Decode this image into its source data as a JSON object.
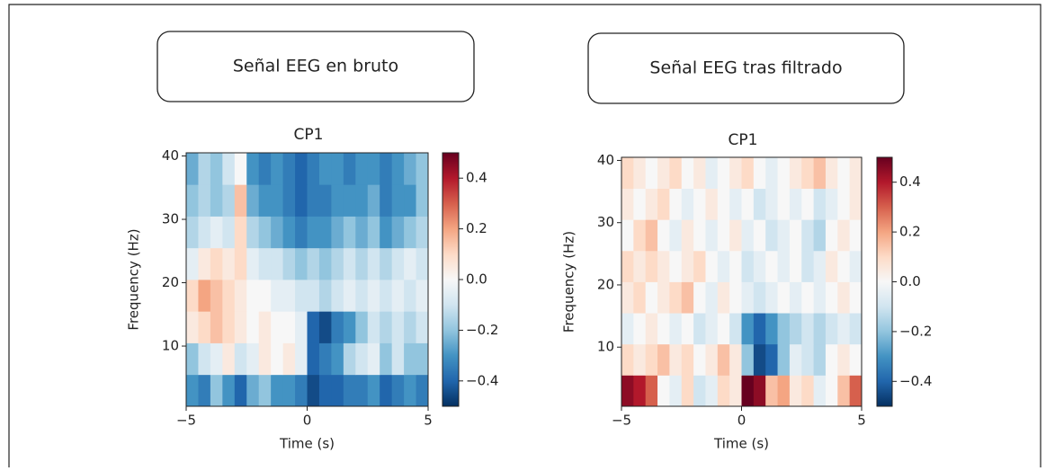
{
  "chart_data": [
    {
      "type": "heatmap",
      "header": "Señal EEG en bruto",
      "title": "CP1",
      "xlabel": "Time (s)",
      "ylabel": "Frequency (Hz)",
      "colormap": "RdBu_r",
      "xlim": [
        -5,
        5
      ],
      "ylim": [
        0.5,
        40.5
      ],
      "xticks": [
        {
          "value": -5,
          "label": "−5"
        },
        0,
        5
      ],
      "yticks": [
        10,
        20,
        30,
        40
      ],
      "clim": [
        -0.5,
        0.5
      ],
      "cticks": [
        0.4,
        0.2,
        {
          "value": 0,
          "label": "0.0"
        },
        {
          "value": -0.2,
          "label": "−0.2"
        },
        {
          "value": -0.4,
          "label": "−0.4"
        }
      ],
      "xbins": [
        -5,
        -4.5,
        -4,
        -3.5,
        -3,
        -2.5,
        -2,
        -1.5,
        -1,
        -0.5,
        0,
        0.5,
        1,
        1.5,
        2,
        2.5,
        3,
        3.5,
        4,
        4.5,
        5
      ],
      "ybins": [
        0.5,
        5.5,
        10.5,
        15.5,
        20.5,
        25.5,
        30.5,
        35.5,
        40.5
      ],
      "values": [
        [
          -0.3,
          -0.35,
          -0.2,
          -0.3,
          -0.4,
          -0.25,
          -0.2,
          -0.3,
          -0.3,
          -0.35,
          -0.45,
          -0.4,
          -0.4,
          -0.35,
          -0.35,
          -0.3,
          -0.4,
          -0.35,
          -0.3,
          -0.35
        ],
        [
          -0.2,
          -0.1,
          -0.05,
          0.05,
          -0.1,
          -0.05,
          0.05,
          0,
          0.05,
          -0.05,
          -0.4,
          -0.35,
          -0.3,
          -0.15,
          -0.1,
          -0.05,
          -0.2,
          -0.1,
          -0.2,
          -0.2
        ],
        [
          0.05,
          0.1,
          0.15,
          0.1,
          0.05,
          0,
          0.05,
          0,
          0,
          -0.05,
          -0.4,
          -0.45,
          -0.35,
          -0.3,
          -0.2,
          -0.1,
          -0.15,
          -0.1,
          -0.15,
          -0.1
        ],
        [
          0.1,
          0.2,
          0.15,
          0.1,
          0.05,
          0,
          0,
          -0.05,
          -0.05,
          -0.1,
          -0.1,
          -0.15,
          -0.1,
          -0.05,
          -0.1,
          -0.05,
          -0.1,
          -0.05,
          -0.1,
          -0.05
        ],
        [
          -0.05,
          0.05,
          0.1,
          0.05,
          0.1,
          -0.05,
          -0.1,
          -0.1,
          -0.15,
          -0.2,
          -0.15,
          -0.2,
          -0.15,
          -0.1,
          -0.15,
          -0.1,
          -0.15,
          -0.1,
          -0.05,
          -0.1
        ],
        [
          -0.15,
          -0.1,
          -0.05,
          -0.1,
          0.1,
          -0.15,
          -0.2,
          -0.25,
          -0.3,
          -0.35,
          -0.3,
          -0.3,
          -0.25,
          -0.2,
          -0.25,
          -0.2,
          -0.3,
          -0.25,
          -0.2,
          -0.15
        ],
        [
          -0.2,
          -0.15,
          -0.2,
          -0.15,
          0.15,
          -0.25,
          -0.3,
          -0.3,
          -0.35,
          -0.4,
          -0.35,
          -0.35,
          -0.3,
          -0.3,
          -0.3,
          -0.25,
          -0.35,
          -0.3,
          -0.3,
          -0.2
        ],
        [
          -0.25,
          -0.15,
          -0.2,
          -0.1,
          0,
          -0.3,
          -0.35,
          -0.3,
          -0.35,
          -0.4,
          -0.35,
          -0.3,
          -0.3,
          -0.35,
          -0.3,
          -0.3,
          -0.35,
          -0.3,
          -0.25,
          -0.2
        ]
      ]
    },
    {
      "type": "heatmap",
      "header": "Señal EEG tras filtrado",
      "title": "CP1",
      "xlabel": "Time (s)",
      "ylabel": "Frequency (Hz)",
      "colormap": "RdBu_r",
      "xlim": [
        -5,
        5
      ],
      "ylim": [
        0.5,
        40.5
      ],
      "xticks": [
        {
          "value": -5,
          "label": "−5"
        },
        0,
        5
      ],
      "yticks": [
        10,
        20,
        30,
        40
      ],
      "clim": [
        -0.5,
        0.5
      ],
      "cticks": [
        0.4,
        0.2,
        {
          "value": 0,
          "label": "0.0"
        },
        {
          "value": -0.2,
          "label": "−0.2"
        },
        {
          "value": -0.4,
          "label": "−0.4"
        }
      ],
      "xbins": [
        -5,
        -4.5,
        -4,
        -3.5,
        -3,
        -2.5,
        -2,
        -1.5,
        -1,
        -0.5,
        0,
        0.5,
        1,
        1.5,
        2,
        2.5,
        3,
        3.5,
        4,
        4.5,
        5
      ],
      "ybins": [
        0.5,
        5.5,
        10.5,
        15.5,
        20.5,
        25.5,
        30.5,
        35.5,
        40.5
      ],
      "values": [
        [
          0.45,
          0.4,
          0.3,
          0,
          -0.05,
          0.1,
          -0.1,
          -0.05,
          0.1,
          0.05,
          0.5,
          0.45,
          0.15,
          0.2,
          0.05,
          0.1,
          -0.05,
          0,
          0.15,
          0.3
        ],
        [
          0.1,
          0.05,
          0.1,
          0.15,
          0.05,
          0.1,
          0,
          0.05,
          0.15,
          0.05,
          -0.2,
          -0.45,
          -0.4,
          -0.2,
          -0.05,
          -0.1,
          -0.15,
          0,
          0.05,
          0
        ],
        [
          -0.05,
          0,
          0.05,
          0,
          -0.05,
          0,
          -0.1,
          -0.05,
          0,
          -0.1,
          -0.3,
          -0.4,
          -0.3,
          -0.2,
          -0.15,
          -0.1,
          -0.15,
          -0.1,
          -0.05,
          -0.1
        ],
        [
          0.05,
          0.1,
          0,
          0.05,
          0.1,
          0.15,
          0,
          -0.05,
          0.05,
          0,
          -0.05,
          -0.1,
          -0.05,
          0,
          -0.05,
          0,
          -0.05,
          0,
          0.05,
          0
        ],
        [
          0.1,
          0.05,
          0.1,
          0.05,
          0,
          0.05,
          0.1,
          0,
          -0.05,
          0,
          -0.1,
          -0.05,
          0,
          -0.05,
          0,
          -0.1,
          -0.05,
          0.05,
          0,
          -0.05
        ],
        [
          0,
          0.1,
          0.15,
          0,
          -0.05,
          0.05,
          0,
          -0.05,
          0,
          0.05,
          -0.05,
          0,
          -0.1,
          -0.05,
          0,
          -0.1,
          -0.15,
          0,
          0.05,
          0
        ],
        [
          0.05,
          0,
          0.05,
          0.1,
          0,
          -0.05,
          0,
          0.05,
          0,
          -0.05,
          0,
          -0.1,
          -0.05,
          0,
          -0.05,
          0,
          -0.1,
          -0.05,
          0,
          0.05
        ],
        [
          0.1,
          0.05,
          0,
          0.05,
          0.1,
          0,
          0.05,
          -0.05,
          0,
          0.05,
          0.1,
          0,
          -0.05,
          0,
          0.05,
          0.1,
          0.15,
          0.05,
          0,
          0.05
        ]
      ]
    }
  ]
}
